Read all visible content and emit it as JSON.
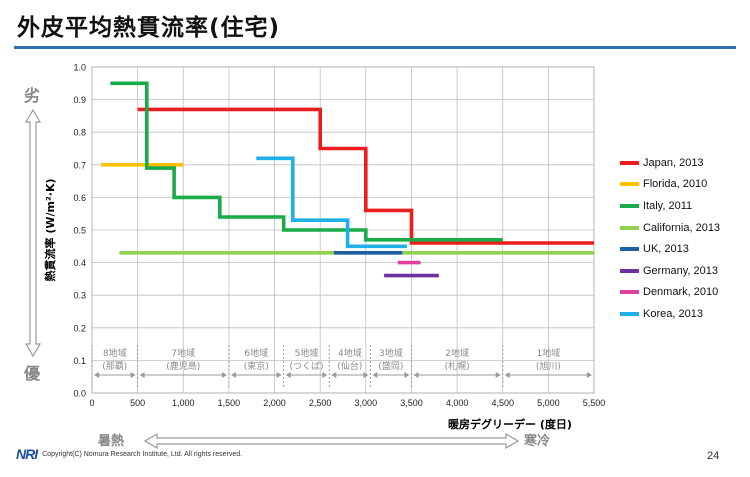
{
  "page": {
    "title": "外皮平均熱貫流率(住宅)",
    "side_top": "劣",
    "side_bottom": "優",
    "bottom_left": "暑熱",
    "bottom_right": "寒冷",
    "copyright": "Copyright(C) Nomura Research Institute, Ltd. All rights reserved.",
    "logo": "NRI",
    "page_number": "24"
  },
  "colors": {
    "title_rule": "#2f6fb0",
    "grid": "#bfbfbf"
  },
  "chart_data": {
    "type": "line",
    "title": "",
    "xlabel": "暖房デグリーデー (度日)",
    "ylabel": "熱貫流率 (W/m²·K)",
    "xlim": [
      0,
      5500
    ],
    "ylim": [
      0,
      1.0
    ],
    "x_ticks": [
      "0",
      "500",
      "1,000",
      "1,500",
      "2,000",
      "2,500",
      "3,000",
      "3,500",
      "4,000",
      "4,500",
      "5,000",
      "5,500"
    ],
    "y_ticks": [
      "0.0",
      "0.1",
      "0.2",
      "0.3",
      "0.4",
      "0.5",
      "0.6",
      "0.7",
      "0.8",
      "0.9",
      "1.0"
    ],
    "grid": true,
    "legend_position": "right",
    "series": [
      {
        "name": "Japan, 2013",
        "color": "#ee1c1c",
        "points": [
          [
            500,
            0.87
          ],
          [
            2500,
            0.87
          ],
          [
            2500,
            0.75
          ],
          [
            3000,
            0.75
          ],
          [
            3000,
            0.56
          ],
          [
            3500,
            0.56
          ],
          [
            3500,
            0.46
          ],
          [
            5500,
            0.46
          ]
        ]
      },
      {
        "name": "Florida, 2010",
        "color": "#ffc000",
        "points": [
          [
            100,
            0.7
          ],
          [
            1000,
            0.7
          ]
        ]
      },
      {
        "name": "Italy, 2011",
        "color": "#1aab4b",
        "points": [
          [
            200,
            0.95
          ],
          [
            600,
            0.95
          ],
          [
            600,
            0.69
          ],
          [
            900,
            0.69
          ],
          [
            900,
            0.6
          ],
          [
            1400,
            0.6
          ],
          [
            1400,
            0.54
          ],
          [
            2100,
            0.54
          ],
          [
            2100,
            0.5
          ],
          [
            3000,
            0.5
          ],
          [
            3000,
            0.47
          ],
          [
            4500,
            0.47
          ]
        ]
      },
      {
        "name": "California, 2013",
        "color": "#92d050",
        "points": [
          [
            300,
            0.43
          ],
          [
            5500,
            0.43
          ]
        ]
      },
      {
        "name": "UK, 2013",
        "color": "#1f5fa8",
        "points": [
          [
            2650,
            0.43
          ],
          [
            3400,
            0.43
          ]
        ]
      },
      {
        "name": "Germany, 2013",
        "color": "#7030a0",
        "points": [
          [
            3200,
            0.36
          ],
          [
            3800,
            0.36
          ]
        ]
      },
      {
        "name": "Denmark, 2010",
        "color": "#e040a0",
        "points": [
          [
            3350,
            0.4
          ],
          [
            3600,
            0.4
          ]
        ]
      },
      {
        "name": "Korea, 2013",
        "color": "#1fb0e8",
        "points": [
          [
            1800,
            0.72
          ],
          [
            2200,
            0.72
          ],
          [
            2200,
            0.53
          ],
          [
            2800,
            0.53
          ],
          [
            2800,
            0.45
          ],
          [
            3450,
            0.45
          ]
        ]
      }
    ],
    "regions": [
      {
        "name": "8地域",
        "sub": "(那覇)",
        "x0": 0,
        "x1": 500
      },
      {
        "name": "7地域",
        "sub": "(鹿児島)",
        "x0": 500,
        "x1": 1500
      },
      {
        "name": "6地域",
        "sub": "(東京)",
        "x0": 1500,
        "x1": 2100
      },
      {
        "name": "5地域",
        "sub": "(つくば)",
        "x0": 2100,
        "x1": 2600
      },
      {
        "name": "4地域",
        "sub": "(仙台)",
        "x0": 2600,
        "x1": 3050
      },
      {
        "name": "3地域",
        "sub": "(盛岡)",
        "x0": 3050,
        "x1": 3500
      },
      {
        "name": "2地域",
        "sub": "(札幌)",
        "x0": 3500,
        "x1": 4500
      },
      {
        "name": "1地域",
        "sub": "(旭川)",
        "x0": 4500,
        "x1": 5500
      }
    ]
  }
}
